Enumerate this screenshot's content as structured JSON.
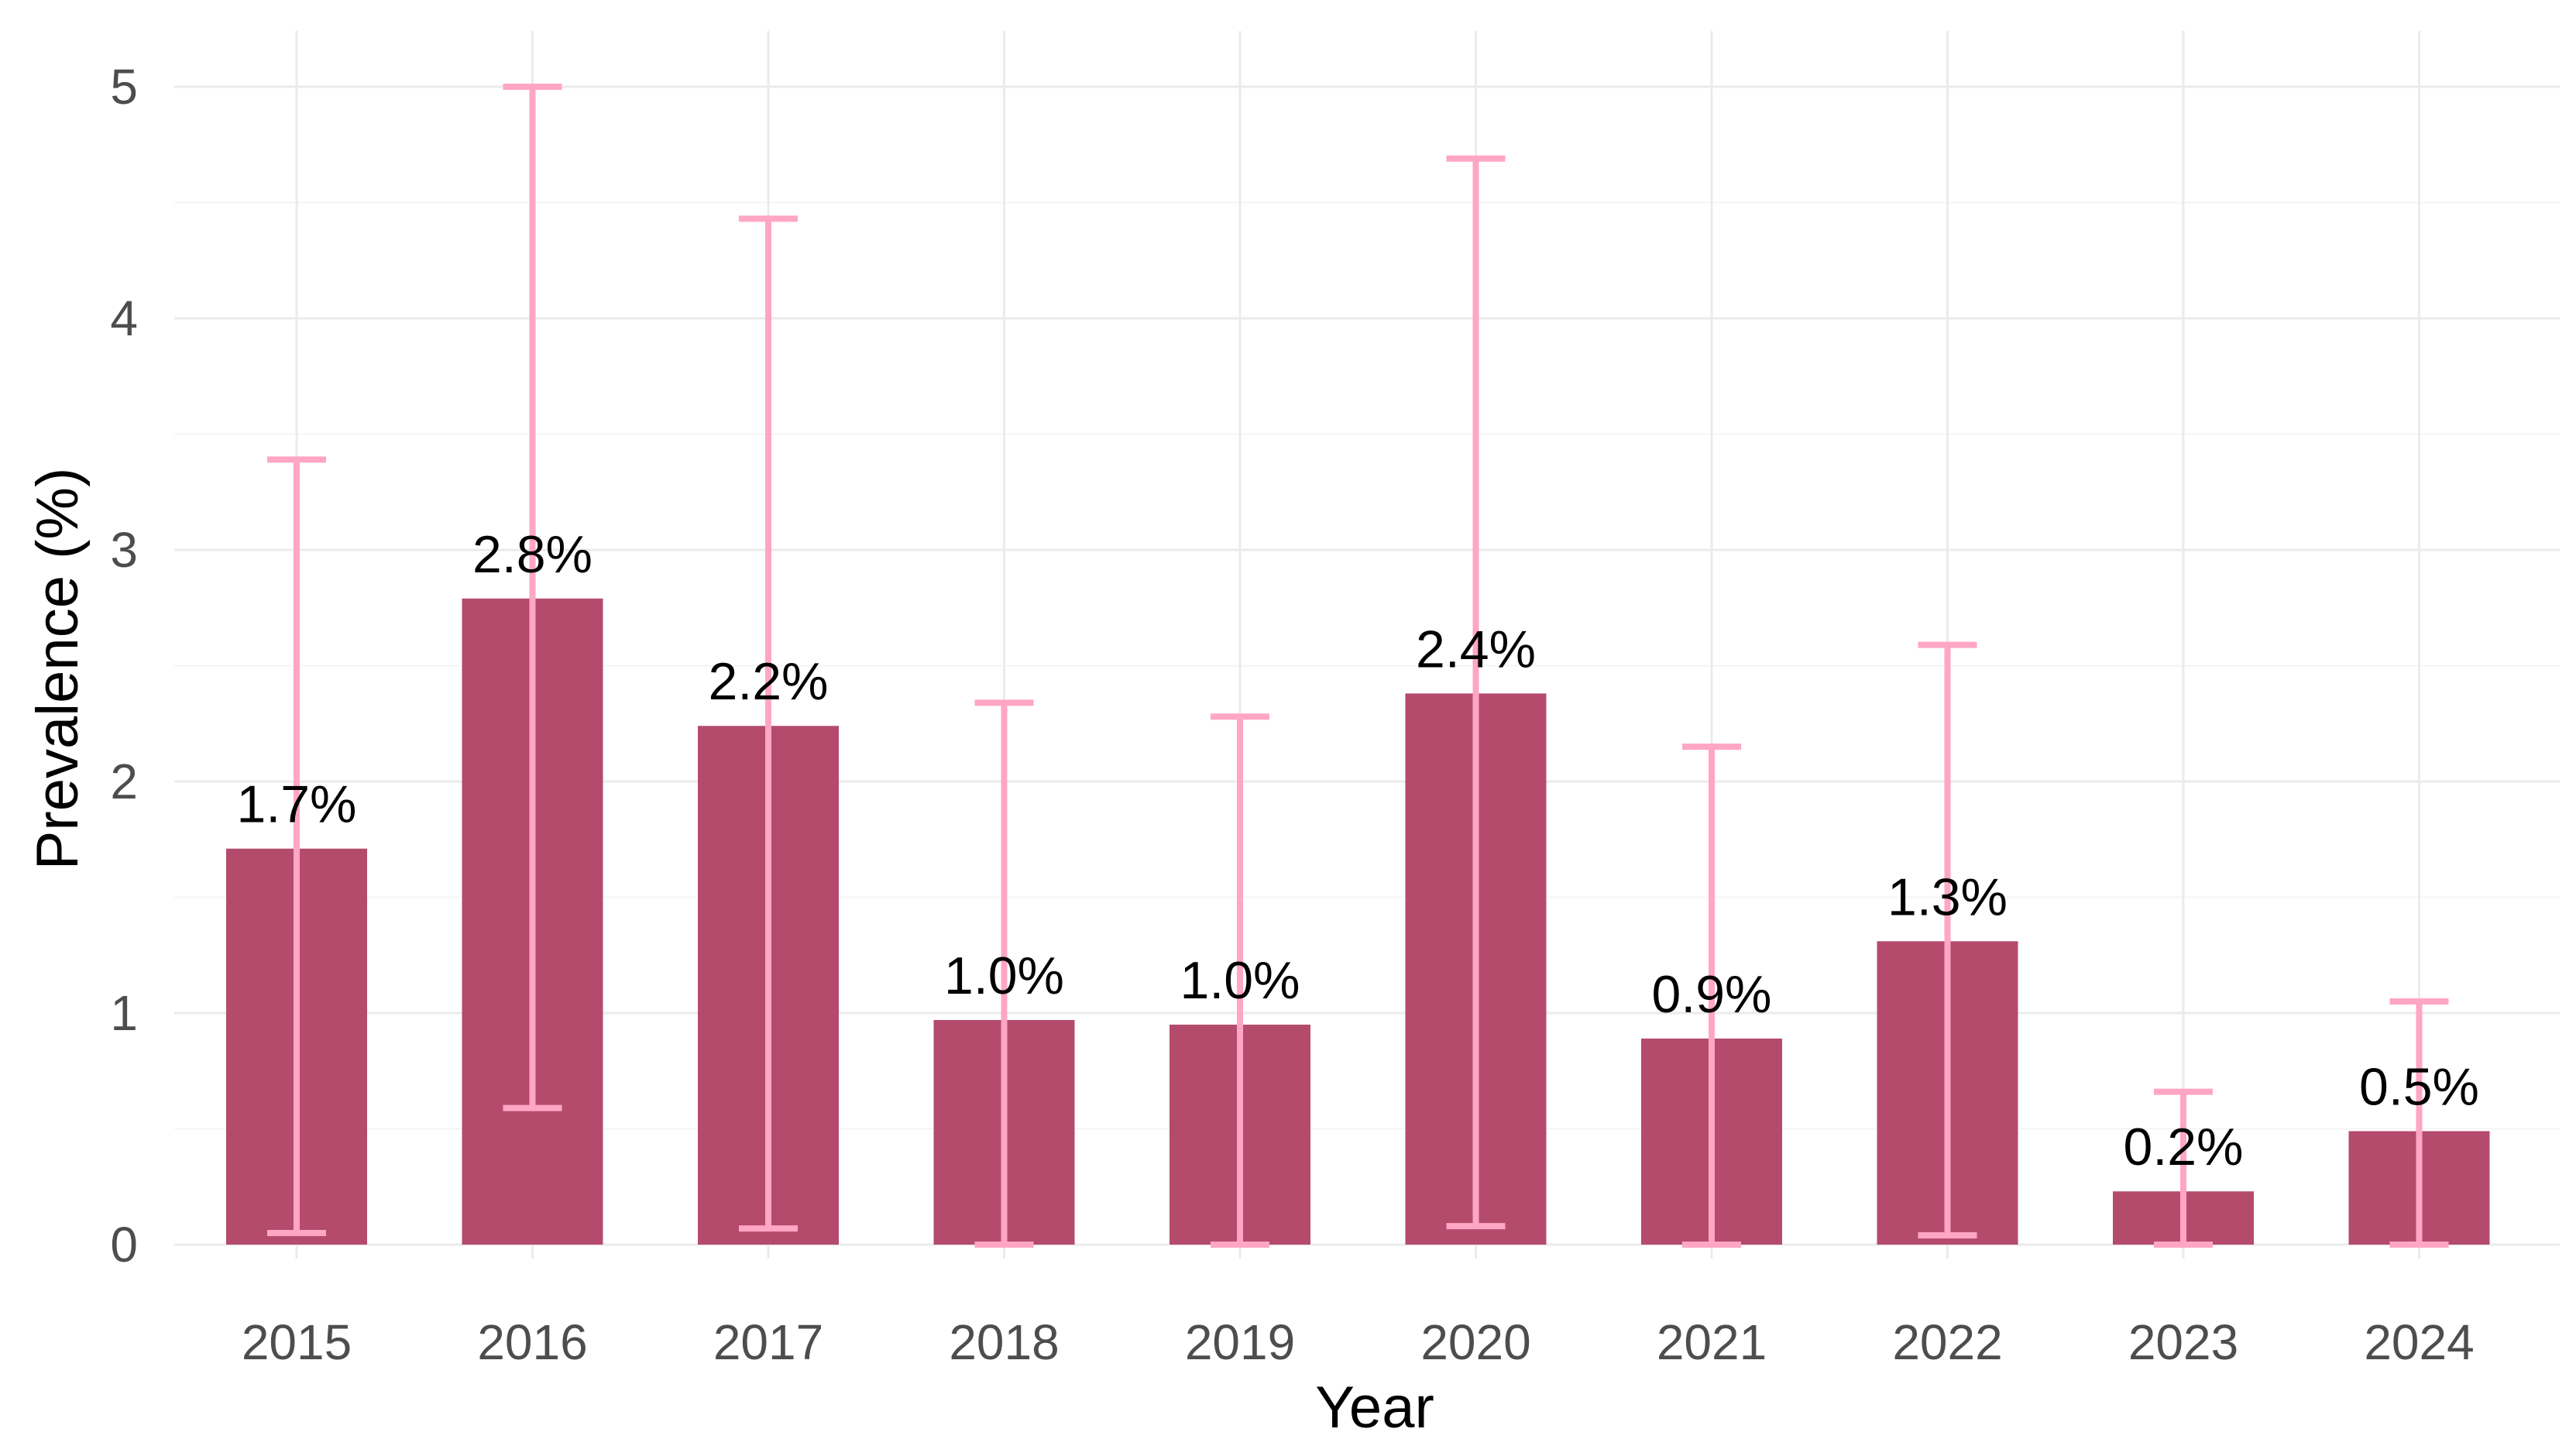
{
  "chart_data": {
    "type": "bar",
    "title": "",
    "xlabel": "Year",
    "ylabel": "Prevalence (%)",
    "ylim": [
      0,
      5.2
    ],
    "yticks": [
      0,
      1,
      2,
      3,
      4,
      5
    ],
    "grid": true,
    "categories": [
      "2015",
      "2016",
      "2017",
      "2018",
      "2019",
      "2020",
      "2021",
      "2022",
      "2023",
      "2024"
    ],
    "values": [
      1.71,
      2.79,
      2.24,
      0.97,
      0.95,
      2.38,
      0.89,
      1.31,
      0.23,
      0.49
    ],
    "error_low": [
      0.05,
      0.59,
      0.07,
      0.0,
      0.0,
      0.08,
      0.0,
      0.04,
      0.0,
      0.0
    ],
    "error_high": [
      3.39,
      5.0,
      4.43,
      2.34,
      2.28,
      4.69,
      2.15,
      2.59,
      0.66,
      1.05
    ],
    "labels": [
      "1.7%",
      "2.8%",
      "2.2%",
      "1.0%",
      "1.0%",
      "2.4%",
      "0.9%",
      "1.3%",
      "0.2%",
      "0.5%"
    ],
    "colors": {
      "bar": "#b44b6d",
      "error_bar": "#ffa6c4"
    }
  }
}
